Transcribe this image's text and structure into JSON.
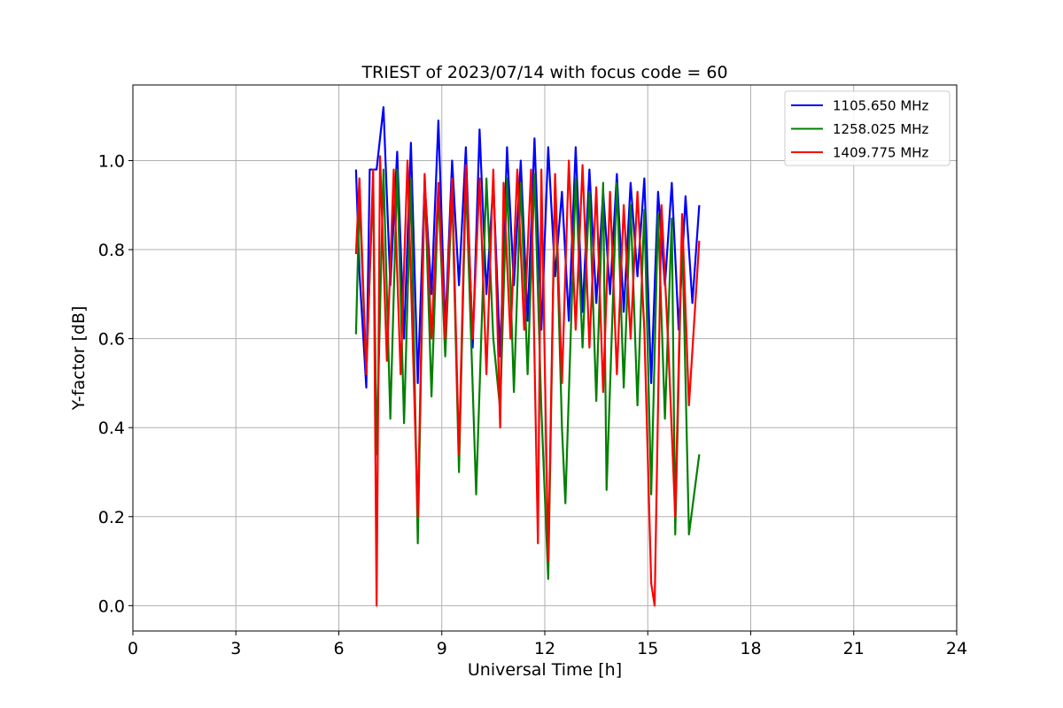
{
  "chart_data": {
    "type": "line",
    "title": "TRIEST of 2023/07/14 with focus code = 60",
    "xlabel": "Universal Time [h]",
    "ylabel": "Y-factor [dB]",
    "xlim": [
      0,
      24
    ],
    "ylim": [
      -0.057,
      1.17
    ],
    "xticks": [
      0,
      3,
      6,
      9,
      12,
      15,
      18,
      21,
      24
    ],
    "xtick_labels": [
      "0",
      "3",
      "6",
      "9",
      "12",
      "15",
      "18",
      "21",
      "24"
    ],
    "yticks": [
      0.0,
      0.2,
      0.4,
      0.6,
      0.8,
      1.0
    ],
    "ytick_labels": [
      "0.0",
      "0.2",
      "0.4",
      "0.6",
      "0.8",
      "1.0"
    ],
    "grid": true,
    "legend_position": "top-right",
    "x_range_observed": [
      6.5,
      16.5
    ],
    "series": [
      {
        "name": "1105.650 MHz",
        "color": "#0000ff",
        "x": [
          6.5,
          6.6,
          6.8,
          6.9,
          7.1,
          7.3,
          7.5,
          7.7,
          7.9,
          8.1,
          8.3,
          8.5,
          8.7,
          8.9,
          9.1,
          9.3,
          9.5,
          9.7,
          9.9,
          10.1,
          10.3,
          10.5,
          10.7,
          10.9,
          11.1,
          11.3,
          11.5,
          11.7,
          11.9,
          12.1,
          12.3,
          12.5,
          12.7,
          12.9,
          13.1,
          13.3,
          13.5,
          13.7,
          13.9,
          14.1,
          14.3,
          14.5,
          14.7,
          14.9,
          15.1,
          15.3,
          15.5,
          15.7,
          15.9,
          16.1,
          16.3,
          16.5
        ],
        "y": [
          0.98,
          0.75,
          0.49,
          0.98,
          0.98,
          1.12,
          0.72,
          1.02,
          0.6,
          1.04,
          0.5,
          0.95,
          0.7,
          1.09,
          0.62,
          1.0,
          0.72,
          1.03,
          0.58,
          1.07,
          0.7,
          0.95,
          0.56,
          1.03,
          0.72,
          1.0,
          0.64,
          1.05,
          0.62,
          1.03,
          0.74,
          0.93,
          0.64,
          1.03,
          0.66,
          0.98,
          0.68,
          0.93,
          0.7,
          0.97,
          0.66,
          0.95,
          0.74,
          0.96,
          0.5,
          0.93,
          0.72,
          0.95,
          0.62,
          0.92,
          0.68,
          0.9
        ]
      },
      {
        "name": "1258.025 MHz",
        "color": "#008000",
        "x": [
          6.5,
          6.6,
          6.8,
          7.0,
          7.1,
          7.3,
          7.5,
          7.7,
          7.9,
          8.1,
          8.3,
          8.5,
          8.7,
          8.9,
          9.1,
          9.3,
          9.5,
          9.7,
          9.9,
          10.0,
          10.3,
          10.5,
          10.7,
          10.9,
          11.1,
          11.3,
          11.5,
          11.7,
          11.9,
          12.1,
          12.3,
          12.5,
          12.6,
          12.9,
          13.1,
          13.3,
          13.5,
          13.7,
          13.8,
          14.1,
          14.3,
          14.5,
          14.7,
          14.9,
          15.1,
          15.3,
          15.5,
          15.7,
          15.8,
          16.0,
          16.2,
          16.5
        ],
        "y": [
          0.61,
          0.92,
          0.52,
          0.96,
          0.34,
          0.98,
          0.42,
          0.98,
          0.41,
          0.96,
          0.14,
          0.96,
          0.47,
          0.93,
          0.56,
          0.93,
          0.3,
          0.96,
          0.49,
          0.25,
          0.96,
          0.6,
          0.44,
          0.96,
          0.48,
          0.95,
          0.52,
          0.97,
          0.44,
          0.06,
          0.96,
          0.4,
          0.23,
          0.96,
          0.58,
          0.93,
          0.46,
          0.95,
          0.26,
          0.95,
          0.49,
          0.9,
          0.45,
          0.89,
          0.25,
          0.88,
          0.42,
          0.87,
          0.16,
          0.85,
          0.16,
          0.34
        ]
      },
      {
        "name": "1409.775 MHz",
        "color": "#ff0000",
        "x": [
          6.5,
          6.6,
          6.8,
          7.0,
          7.1,
          7.2,
          7.4,
          7.6,
          7.8,
          8.0,
          8.3,
          8.5,
          8.7,
          8.9,
          9.1,
          9.3,
          9.5,
          9.7,
          9.9,
          10.1,
          10.3,
          10.5,
          10.7,
          10.8,
          11.0,
          11.2,
          11.4,
          11.6,
          11.8,
          11.9,
          12.1,
          12.3,
          12.5,
          12.7,
          12.9,
          13.1,
          13.3,
          13.5,
          13.7,
          13.9,
          14.1,
          14.3,
          14.5,
          14.7,
          14.9,
          15.1,
          15.2,
          15.4,
          15.6,
          15.8,
          16.0,
          16.2,
          16.5
        ],
        "y": [
          0.79,
          0.96,
          0.52,
          0.98,
          0.0,
          1.01,
          0.55,
          0.98,
          0.52,
          1.0,
          0.2,
          0.97,
          0.6,
          0.95,
          0.6,
          0.96,
          0.34,
          0.99,
          0.6,
          0.96,
          0.52,
          0.98,
          0.4,
          0.95,
          0.6,
          0.98,
          0.62,
          0.98,
          0.14,
          0.98,
          0.1,
          0.97,
          0.5,
          1.0,
          0.62,
          0.99,
          0.58,
          0.94,
          0.48,
          0.93,
          0.52,
          0.9,
          0.6,
          0.93,
          0.62,
          0.05,
          0.0,
          0.9,
          0.58,
          0.2,
          0.88,
          0.45,
          0.82
        ]
      }
    ]
  }
}
